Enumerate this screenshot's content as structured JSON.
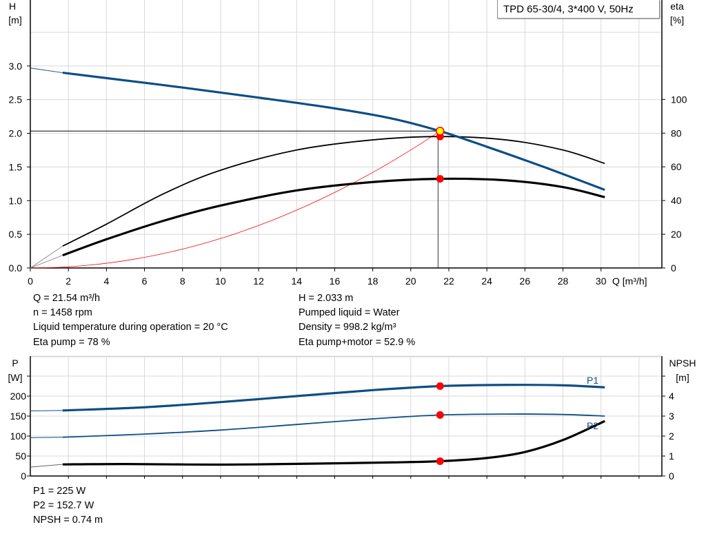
{
  "title": "TPD 65-30/4, 3*400 V, 50Hz",
  "colors": {
    "pump_curve": "#0d4d86",
    "efficiency": "#000000",
    "system_curve": "#ff0000",
    "operating_point": "#ff0000",
    "duty_marker": "#ffff00",
    "grid": "#d8d8d8"
  },
  "chart_data": [
    {
      "type": "line",
      "xlabel": "Q [m³/h]",
      "ylabel": "H\n[m]",
      "y2label": "eta\n[%]",
      "xlim": [
        0,
        33.2
      ],
      "ylim": [
        0,
        3.98
      ],
      "y2lim": [
        0,
        159
      ],
      "grid": true,
      "xticks": [
        "0",
        "2",
        "4",
        "6",
        "8",
        "10",
        "12",
        "14",
        "16",
        "18",
        "20",
        "22",
        "24",
        "26",
        "28",
        "30"
      ],
      "yticks": [
        "0.0",
        "0.5",
        "1.0",
        "1.5",
        "2.0",
        "2.5",
        "3.0"
      ],
      "y2ticks": [
        "0",
        "20",
        "40",
        "60",
        "80",
        "100"
      ],
      "series": [
        {
          "id": "head",
          "axis": "left",
          "x": [
            0,
            1.7,
            4,
            8,
            12,
            16,
            19,
            21.54,
            24,
            27,
            30.2
          ],
          "y": [
            2.97,
            2.9,
            2.82,
            2.68,
            2.53,
            2.37,
            2.22,
            2.033,
            1.8,
            1.5,
            1.16
          ]
        },
        {
          "id": "eta_pump",
          "axis": "right",
          "x": [
            1.7,
            4,
            7,
            10,
            14,
            18,
            21.54,
            25,
            28,
            30.2
          ],
          "y": [
            13,
            26,
            44,
            58,
            70,
            76,
            78,
            76,
            70,
            62
          ]
        },
        {
          "id": "eta_pump_motor",
          "axis": "right",
          "x": [
            1.7,
            4,
            7,
            10,
            14,
            18,
            21.54,
            25,
            28,
            30.2
          ],
          "y": [
            7.5,
            17,
            28,
            37,
            46,
            51,
            52.9,
            52,
            48,
            42
          ]
        },
        {
          "id": "system_curve",
          "axis": "left",
          "equation": "H = 2.033*(Q/21.54)^2",
          "x": [
            0,
            21.54
          ],
          "y": [
            0,
            2.033
          ]
        }
      ],
      "operating_point": {
        "Q": 21.54,
        "H": 2.033,
        "eta_pump": 78,
        "eta_pump_motor": 52.9
      }
    },
    {
      "type": "line",
      "ylabel": "P\n[W]",
      "y2label": "NPSH\n[m]",
      "xlim": [
        0,
        33.2
      ],
      "ylim": [
        0,
        300
      ],
      "y2lim": [
        0,
        6
      ],
      "grid": true,
      "yticks": [
        "0",
        "50",
        "100",
        "150",
        "200"
      ],
      "y2ticks": [
        "0",
        "1",
        "2",
        "3",
        "4"
      ],
      "series": [
        {
          "id": "P1",
          "name": "P1",
          "axis": "left",
          "x": [
            0,
            1.7,
            6,
            10,
            14,
            18,
            21.54,
            25,
            28,
            30.2
          ],
          "y": [
            163,
            164,
            172,
            185,
            200,
            215,
            225,
            228,
            227,
            222
          ]
        },
        {
          "id": "P2",
          "name": "P2",
          "axis": "left",
          "x": [
            0,
            1.7,
            6,
            10,
            14,
            18,
            21.54,
            25,
            28,
            30.2
          ],
          "y": [
            96,
            97,
            105,
            115,
            129,
            143,
            152.7,
            155,
            154,
            150
          ]
        },
        {
          "id": "NPSH",
          "axis": "right",
          "x": [
            0,
            1.7,
            5,
            10,
            15,
            19,
            21.54,
            24,
            26,
            28,
            30.2
          ],
          "y": [
            0.45,
            0.58,
            0.6,
            0.57,
            0.62,
            0.68,
            0.74,
            0.9,
            1.2,
            1.8,
            2.75
          ]
        }
      ],
      "operating_point": {
        "Q": 21.54,
        "P1": 225,
        "P2": 152.7,
        "NPSH": 0.74
      }
    }
  ],
  "info_top": {
    "q": "Q = 21.54 m³/h",
    "h": "H = 2.033 m",
    "n": "n = 1458 rpm",
    "liquid": "Pumped liquid = Water",
    "temp": "Liquid temperature during operation = 20 °C",
    "density": "Density = 998.2 kg/m³",
    "eta_pump": "Eta pump = 78 %",
    "eta_pm": "Eta pump+motor = 52.9 %"
  },
  "info_bottom": {
    "p1": "P1 = 225 W",
    "p2": "P2 = 152.7 W",
    "npsh": "NPSH = 0.74 m"
  },
  "axis_text": {
    "h": "H",
    "h_unit": "[m]",
    "eta": "eta",
    "eta_unit": "[%]",
    "q": "Q [m³/h]",
    "p": "P",
    "p_unit": "[W]",
    "npsh": "NPSH",
    "npsh_unit": "[m]",
    "p1_label": "P1",
    "p2_label": "P2"
  }
}
